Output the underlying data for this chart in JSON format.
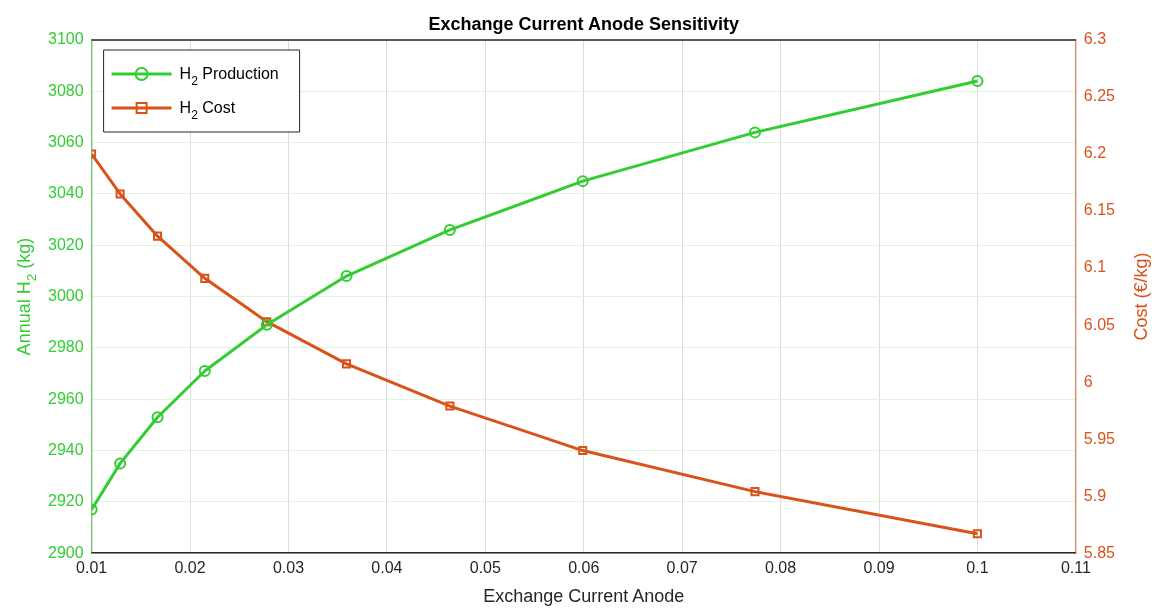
{
  "chart_data": {
    "type": "line",
    "title": "Exchange Current Anode Sensitivity",
    "xlabel": "Exchange Current Anode",
    "ylabel": "Annual H$_{2}$ (kg)",
    "y2label": "Cost (€/kg)",
    "x": [
      0.01,
      0.0129,
      0.0167,
      0.0215,
      0.0278,
      0.0359,
      0.0464,
      0.0599,
      0.0774,
      0.1
    ],
    "series": [
      {
        "name": "H$_{2}$ Production",
        "color": "#33cc33",
        "marker": "circle",
        "values": [
          2917,
          2935,
          2953,
          2971,
          2989,
          3008,
          3026,
          3045,
          3064,
          3084
        ]
      },
      {
        "name": "H$_{2}$ Cost",
        "color": "#d95319",
        "marker": "square",
        "axis": "y2",
        "values": [
          6.2,
          6.165,
          6.128,
          6.091,
          6.053,
          6.016,
          5.979,
          5.94,
          5.904,
          5.867
        ]
      }
    ],
    "xlim": [
      0.01,
      0.11
    ],
    "xticks": [
      0.01,
      0.02,
      0.03,
      0.04,
      0.05,
      0.06,
      0.07,
      0.08,
      0.09,
      0.1,
      0.11
    ],
    "ylim": [
      2900,
      3100
    ],
    "yticks": [
      2900,
      2920,
      2940,
      2960,
      2980,
      3000,
      3020,
      3040,
      3060,
      3080,
      3100
    ],
    "y2lim": [
      5.85,
      6.3
    ],
    "y2ticks": [
      5.85,
      5.9,
      5.95,
      6,
      6.05,
      6.1,
      6.15,
      6.2,
      6.25,
      6.3
    ],
    "grid": true,
    "legend": "top left",
    "line_style": "solid"
  }
}
